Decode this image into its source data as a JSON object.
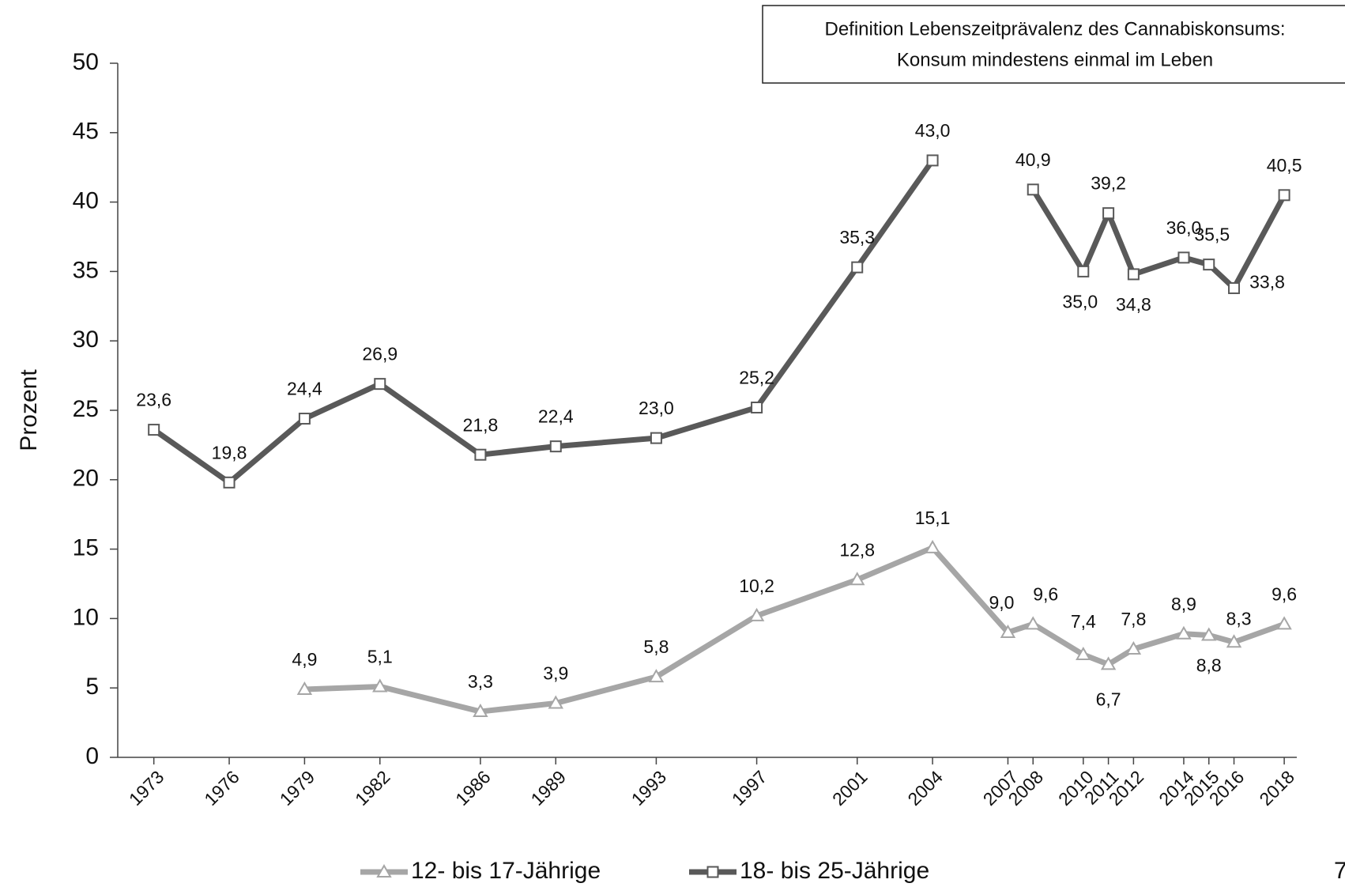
{
  "chart_data": {
    "type": "line",
    "y_label": "Prozent",
    "annotation": [
      "Definition Lebenszeitprävalenz des Cannabiskonsums:",
      "Konsum mindestens einmal im Leben"
    ],
    "page_number": "7",
    "x": [
      1973,
      1976,
      1979,
      1982,
      1986,
      1989,
      1993,
      1997,
      2001,
      2004,
      2007,
      2008,
      2010,
      2011,
      2012,
      2014,
      2015,
      2016,
      2018
    ],
    "xlim": [
      1971.5,
      2018.5
    ],
    "xticks": [
      1973,
      1976,
      1979,
      1982,
      1986,
      1989,
      1993,
      1997,
      2001,
      2004,
      2007,
      2008,
      2010,
      2011,
      2012,
      2014,
      2015,
      2016,
      2018
    ],
    "ylim": [
      0,
      50
    ],
    "yticks": [
      0,
      5,
      10,
      15,
      20,
      25,
      30,
      35,
      40,
      45,
      50
    ],
    "grid": false,
    "legend": "bottom",
    "series": [
      {
        "name": "12- bis 17-Jährige",
        "color": "#a6a6a6",
        "marker": "triangle",
        "values": [
          null,
          null,
          4.9,
          5.1,
          3.3,
          3.9,
          5.8,
          10.2,
          12.8,
          15.1,
          9.0,
          9.6,
          7.4,
          6.7,
          7.8,
          8.9,
          8.8,
          8.3,
          9.6
        ],
        "value_labels": [
          null,
          null,
          "4,9",
          "5,1",
          "3,3",
          "3,9",
          "5,8",
          "10,2",
          "12,8",
          "15,1",
          "9,0",
          "9,6",
          "7,4",
          "6,7",
          "7,8",
          "8,9",
          "8,8",
          "8,3",
          "9,6"
        ]
      },
      {
        "name": "18- bis 25-Jährige",
        "color": "#595959",
        "marker": "square",
        "values": [
          23.6,
          19.8,
          24.4,
          26.9,
          21.8,
          22.4,
          23.0,
          25.2,
          35.3,
          43.0,
          null,
          40.9,
          35.0,
          39.2,
          34.8,
          36.0,
          35.5,
          33.8,
          40.5
        ],
        "value_labels": [
          "23,6",
          "19,8",
          "24,4",
          "26,9",
          "21,8",
          "22,4",
          "23,0",
          "25,2",
          "35,3",
          "43,0",
          null,
          "40,9",
          "35,0",
          "39,2",
          "34,8",
          "36,0",
          "35,5",
          "33,8",
          "40,5"
        ]
      }
    ]
  }
}
